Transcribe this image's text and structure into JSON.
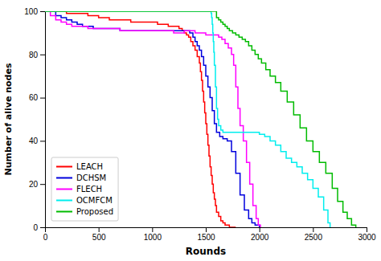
{
  "chart_data": {
    "type": "step",
    "xlabel": "Rounds",
    "ylabel": "Number of alive nodes",
    "xlim": [
      0,
      3000
    ],
    "ylim": [
      0,
      100
    ],
    "xticks": [
      0,
      500,
      1000,
      1500,
      2000,
      2500,
      3000
    ],
    "yticks": [
      0,
      20,
      40,
      60,
      80,
      100
    ],
    "grid": false,
    "legend": "lower left",
    "series": [
      {
        "name": "LEACH",
        "color": "#ff0000",
        "x": [
          0,
          200,
          400,
          500,
          600,
          700,
          800,
          900,
          1000,
          1050,
          1100,
          1150,
          1200,
          1250,
          1280,
          1300,
          1320,
          1340,
          1360,
          1380,
          1400,
          1420,
          1440,
          1450,
          1460,
          1470,
          1480,
          1490,
          1500,
          1510,
          1520,
          1530,
          1540,
          1550,
          1560,
          1570,
          1580,
          1590,
          1600,
          1620,
          1640,
          1660,
          1680,
          1700,
          1720,
          1750,
          1780
        ],
        "values": [
          100,
          99,
          98,
          97,
          96,
          96,
          95,
          95,
          95,
          94,
          94,
          93,
          93,
          92,
          91,
          90,
          89,
          88,
          86,
          84,
          82,
          79,
          76,
          72,
          68,
          63,
          58,
          53,
          48,
          43,
          38,
          33,
          28,
          24,
          20,
          16,
          13,
          10,
          7,
          5,
          3,
          2,
          1,
          1,
          0,
          0,
          0
        ]
      },
      {
        "name": "DCHSM",
        "color": "#0000dd",
        "x": [
          0,
          100,
          150,
          200,
          250,
          300,
          350,
          400,
          450,
          500,
          600,
          700,
          800,
          900,
          1000,
          1100,
          1200,
          1300,
          1350,
          1380,
          1400,
          1420,
          1440,
          1460,
          1480,
          1500,
          1520,
          1540,
          1560,
          1580,
          1600,
          1630,
          1660,
          1700,
          1740,
          1780,
          1820,
          1860,
          1900,
          1930,
          1960,
          1980,
          2000,
          2010
        ],
        "values": [
          100,
          98,
          97,
          96,
          95,
          94,
          93,
          93,
          92,
          92,
          92,
          91,
          91,
          91,
          91,
          91,
          91,
          91,
          90,
          88,
          86,
          84,
          82,
          79,
          75,
          70,
          65,
          60,
          54,
          48,
          44,
          42,
          41,
          40,
          35,
          25,
          15,
          8,
          4,
          2,
          1,
          1,
          0,
          0
        ]
      },
      {
        "name": "FLECH",
        "color": "#ff00ff",
        "x": [
          0,
          50,
          100,
          150,
          200,
          250,
          300,
          400,
          500,
          600,
          700,
          800,
          900,
          1000,
          1100,
          1200,
          1300,
          1400,
          1450,
          1480,
          1500,
          1520,
          1540,
          1560,
          1580,
          1600,
          1620,
          1650,
          1680,
          1710,
          1740,
          1760,
          1780,
          1800,
          1820,
          1850,
          1880,
          1910,
          1940,
          1970,
          1990,
          2010
        ],
        "values": [
          100,
          98,
          96,
          95,
          94,
          93,
          93,
          92,
          92,
          92,
          91,
          91,
          91,
          91,
          91,
          90,
          91,
          90,
          90,
          90,
          89,
          89,
          89,
          89,
          89,
          89,
          88,
          87,
          85,
          83,
          80,
          75,
          65,
          55,
          47,
          40,
          30,
          20,
          10,
          4,
          1,
          0
        ]
      },
      {
        "name": "OCMFCM",
        "color": "#00eeee",
        "x": [
          0,
          1548,
          1550,
          1555,
          1560,
          1565,
          1570,
          1575,
          1580,
          1590,
          1600,
          1610,
          1620,
          1640,
          1660,
          1700,
          1750,
          1800,
          1900,
          2000,
          2050,
          2100,
          2150,
          2200,
          2250,
          2300,
          2350,
          2400,
          2450,
          2500,
          2550,
          2600,
          2640,
          2660
        ],
        "values": [
          100,
          100,
          99,
          97,
          94,
          90,
          86,
          81,
          75,
          65,
          55,
          50,
          47,
          45,
          44,
          44,
          44,
          44,
          44,
          43,
          42,
          40,
          38,
          35,
          32,
          30,
          28,
          25,
          22,
          18,
          14,
          8,
          2,
          0
        ]
      },
      {
        "name": "Proposed",
        "color": "#00bb00",
        "x": [
          0,
          1595,
          1600,
          1620,
          1640,
          1660,
          1680,
          1700,
          1720,
          1750,
          1780,
          1810,
          1840,
          1870,
          1900,
          1930,
          1960,
          1990,
          2020,
          2060,
          2100,
          2150,
          2200,
          2260,
          2320,
          2380,
          2440,
          2500,
          2560,
          2620,
          2680,
          2730,
          2780,
          2820,
          2860,
          2900
        ],
        "values": [
          100,
          100,
          97,
          96,
          95,
          94,
          93,
          92,
          91,
          90,
          89,
          88,
          87,
          86,
          84,
          82,
          80,
          78,
          76,
          73,
          70,
          67,
          63,
          58,
          52,
          46,
          40,
          35,
          30,
          25,
          18,
          12,
          7,
          4,
          1,
          0
        ]
      }
    ]
  }
}
